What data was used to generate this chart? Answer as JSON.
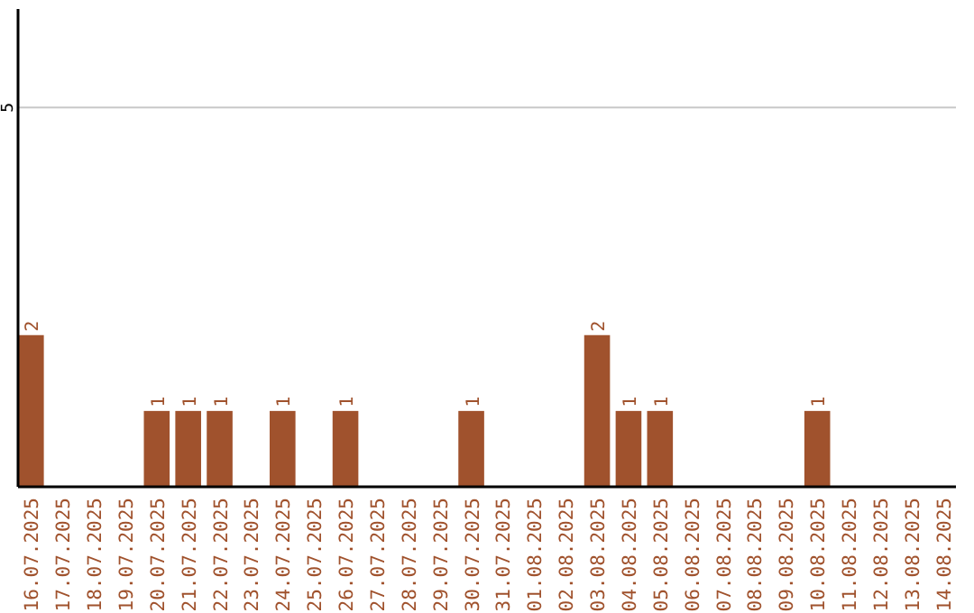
{
  "chart_data": {
    "type": "bar",
    "categories": [
      "16.07.2025",
      "17.07.2025",
      "18.07.2025",
      "19.07.2025",
      "20.07.2025",
      "21.07.2025",
      "22.07.2025",
      "23.07.2025",
      "24.07.2025",
      "25.07.2025",
      "26.07.2025",
      "27.07.2025",
      "28.07.2025",
      "29.07.2025",
      "30.07.2025",
      "31.07.2025",
      "01.08.2025",
      "02.08.2025",
      "03.08.2025",
      "04.08.2025",
      "05.08.2025",
      "06.08.2025",
      "07.08.2025",
      "08.08.2025",
      "09.08.2025",
      "10.08.2025",
      "11.08.2025",
      "12.08.2025",
      "13.08.2025",
      "14.08.2025"
    ],
    "values": [
      2,
      0,
      0,
      0,
      1,
      1,
      1,
      0,
      1,
      0,
      1,
      0,
      0,
      0,
      1,
      0,
      0,
      0,
      2,
      1,
      1,
      0,
      0,
      0,
      0,
      1,
      0,
      0,
      0,
      0
    ],
    "value_labels": [
      "2",
      null,
      null,
      null,
      "1",
      "1",
      "1",
      null,
      "1",
      null,
      "1",
      null,
      null,
      null,
      "1",
      null,
      null,
      null,
      "2",
      "1",
      "1",
      null,
      null,
      null,
      null,
      "1",
      null,
      null,
      null,
      null
    ],
    "color": "#a0522d",
    "ylim": [
      0,
      6.3
    ],
    "yticks": [
      5
    ],
    "grid": "y"
  }
}
